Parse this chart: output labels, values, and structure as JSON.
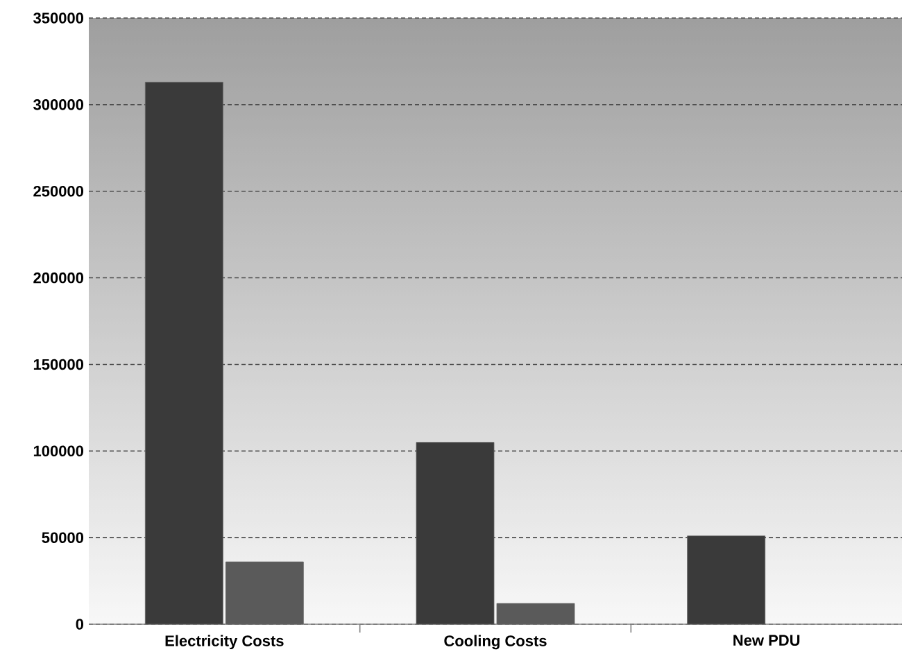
{
  "chart_data": {
    "type": "bar",
    "categories": [
      "Electricity Costs",
      "Cooling Costs",
      "New PDU"
    ],
    "series": [
      {
        "color": "#3a3a3a",
        "values": [
          313000,
          105000,
          51000
        ]
      },
      {
        "color": "#5a5a5a",
        "values": [
          36000,
          12000,
          null
        ]
      }
    ],
    "ylim": [
      0,
      350000
    ],
    "yticks": [
      0,
      50000,
      100000,
      150000,
      200000,
      250000,
      300000,
      350000
    ],
    "grid": "y"
  }
}
